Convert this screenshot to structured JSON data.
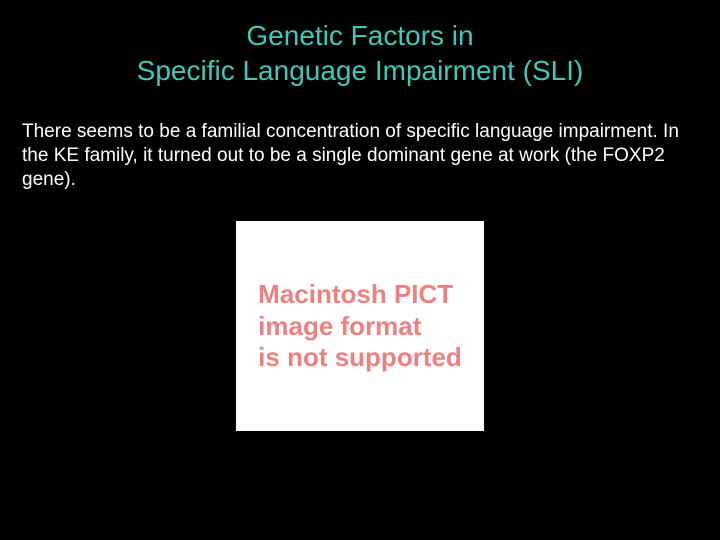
{
  "slide": {
    "background_color": "#000000",
    "title": {
      "line1": "Genetic Factors in",
      "line2": "Specific Language Impairment (SLI)",
      "color": "#40c8b8",
      "fontsize": 28
    },
    "body": {
      "text": "There seems to be a familial concentration of specific language impairment.  In the KE family, it turned out to be a single dominant gene at work (the FOXP2 gene).",
      "color": "#ffffff",
      "fontsize": 19
    },
    "placeholder": {
      "background_color": "#ffffff",
      "text_color": "#f08080",
      "line1": "Macintosh PICT",
      "line2": "image format",
      "line3": "is not supported",
      "fontsize": 26
    }
  }
}
